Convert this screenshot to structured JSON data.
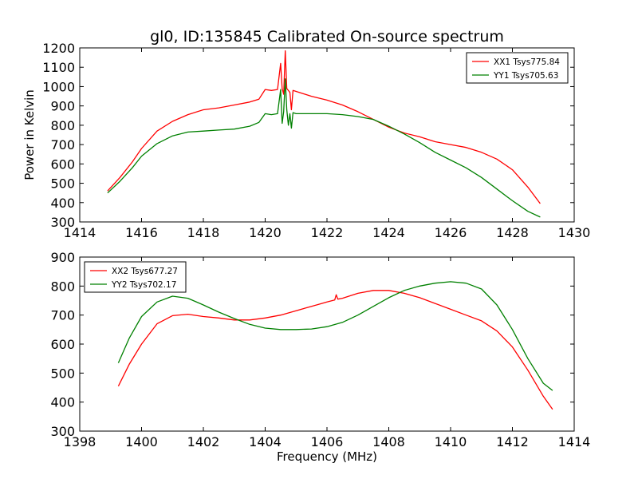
{
  "figure": {
    "title": "gl0, ID:135845 Calibrated On-source spectrum"
  },
  "chart_data": [
    {
      "type": "line",
      "title": "gl0, ID:135845 Calibrated On-source spectrum",
      "xlabel": "",
      "ylabel": "Power in Kelvin",
      "xlim": [
        1414,
        1430
      ],
      "ylim": [
        300,
        1200
      ],
      "x_ticks": [
        "1414",
        "1416",
        "1418",
        "1420",
        "1422",
        "1424",
        "1426",
        "1428",
        "1430"
      ],
      "y_ticks": [
        "300",
        "400",
        "500",
        "600",
        "700",
        "800",
        "900",
        "1000",
        "1100",
        "1200"
      ],
      "legend_position": "top-right",
      "grid": false,
      "series": [
        {
          "name": "XX1 Tsys775.84",
          "color": "#ff0000",
          "points": [
            [
              1414.9,
              460
            ],
            [
              1415.3,
              530
            ],
            [
              1415.7,
              610
            ],
            [
              1416.0,
              680
            ],
            [
              1416.5,
              770
            ],
            [
              1417.0,
              820
            ],
            [
              1417.5,
              855
            ],
            [
              1418.0,
              880
            ],
            [
              1418.5,
              890
            ],
            [
              1419.0,
              905
            ],
            [
              1419.5,
              920
            ],
            [
              1419.8,
              935
            ],
            [
              1420.0,
              985
            ],
            [
              1420.2,
              980
            ],
            [
              1420.4,
              985
            ],
            [
              1420.5,
              1120
            ],
            [
              1420.55,
              990
            ],
            [
              1420.6,
              960
            ],
            [
              1420.65,
              1185
            ],
            [
              1420.7,
              990
            ],
            [
              1420.8,
              970
            ],
            [
              1420.85,
              880
            ],
            [
              1420.9,
              980
            ],
            [
              1421.0,
              975
            ],
            [
              1421.5,
              950
            ],
            [
              1422.0,
              930
            ],
            [
              1422.5,
              905
            ],
            [
              1423.0,
              870
            ],
            [
              1423.5,
              830
            ],
            [
              1424.0,
              790
            ],
            [
              1424.5,
              760
            ],
            [
              1425.0,
              740
            ],
            [
              1425.5,
              715
            ],
            [
              1426.0,
              700
            ],
            [
              1426.5,
              685
            ],
            [
              1427.0,
              660
            ],
            [
              1427.5,
              625
            ],
            [
              1428.0,
              570
            ],
            [
              1428.5,
              480
            ],
            [
              1428.9,
              395
            ]
          ]
        },
        {
          "name": "YY1 Tsys705.63",
          "color": "#008000",
          "points": [
            [
              1414.9,
              450
            ],
            [
              1415.3,
              510
            ],
            [
              1415.7,
              580
            ],
            [
              1416.0,
              640
            ],
            [
              1416.5,
              705
            ],
            [
              1417.0,
              745
            ],
            [
              1417.5,
              765
            ],
            [
              1418.0,
              770
            ],
            [
              1418.5,
              775
            ],
            [
              1419.0,
              780
            ],
            [
              1419.5,
              795
            ],
            [
              1419.8,
              815
            ],
            [
              1420.0,
              860
            ],
            [
              1420.2,
              855
            ],
            [
              1420.4,
              860
            ],
            [
              1420.5,
              985
            ],
            [
              1420.55,
              810
            ],
            [
              1420.6,
              870
            ],
            [
              1420.65,
              1040
            ],
            [
              1420.7,
              880
            ],
            [
              1420.75,
              800
            ],
            [
              1420.8,
              860
            ],
            [
              1420.85,
              785
            ],
            [
              1420.9,
              865
            ],
            [
              1421.0,
              860
            ],
            [
              1421.5,
              860
            ],
            [
              1422.0,
              860
            ],
            [
              1422.5,
              855
            ],
            [
              1423.0,
              845
            ],
            [
              1423.5,
              830
            ],
            [
              1424.0,
              795
            ],
            [
              1424.5,
              755
            ],
            [
              1425.0,
              710
            ],
            [
              1425.5,
              660
            ],
            [
              1426.0,
              620
            ],
            [
              1426.5,
              580
            ],
            [
              1427.0,
              530
            ],
            [
              1427.5,
              470
            ],
            [
              1428.0,
              410
            ],
            [
              1428.5,
              355
            ],
            [
              1428.9,
              325
            ]
          ]
        }
      ]
    },
    {
      "type": "line",
      "title": "",
      "xlabel": "Frequency (MHz)",
      "ylabel": "",
      "xlim": [
        1398,
        1414
      ],
      "ylim": [
        300,
        900
      ],
      "x_ticks": [
        "1398",
        "1400",
        "1402",
        "1404",
        "1406",
        "1408",
        "1410",
        "1412",
        "1414"
      ],
      "y_ticks": [
        "300",
        "400",
        "500",
        "600",
        "700",
        "800",
        "900"
      ],
      "legend_position": "top-left",
      "grid": false,
      "series": [
        {
          "name": "XX2 Tsys677.27",
          "color": "#ff0000",
          "points": [
            [
              1399.25,
              455
            ],
            [
              1399.6,
              530
            ],
            [
              1400.0,
              600
            ],
            [
              1400.5,
              670
            ],
            [
              1401.0,
              698
            ],
            [
              1401.5,
              703
            ],
            [
              1402.0,
              695
            ],
            [
              1402.5,
              690
            ],
            [
              1403.0,
              683
            ],
            [
              1403.5,
              683
            ],
            [
              1404.0,
              690
            ],
            [
              1404.5,
              700
            ],
            [
              1405.0,
              715
            ],
            [
              1405.5,
              730
            ],
            [
              1406.0,
              745
            ],
            [
              1406.25,
              752
            ],
            [
              1406.3,
              770
            ],
            [
              1406.35,
              755
            ],
            [
              1406.5,
              758
            ],
            [
              1407.0,
              775
            ],
            [
              1407.5,
              785
            ],
            [
              1408.0,
              785
            ],
            [
              1408.5,
              775
            ],
            [
              1409.0,
              760
            ],
            [
              1409.5,
              740
            ],
            [
              1410.0,
              720
            ],
            [
              1410.5,
              700
            ],
            [
              1411.0,
              680
            ],
            [
              1411.5,
              645
            ],
            [
              1412.0,
              590
            ],
            [
              1412.5,
              510
            ],
            [
              1413.0,
              420
            ],
            [
              1413.3,
              375
            ]
          ]
        },
        {
          "name": "YY2 Tsys702.17",
          "color": "#008000",
          "points": [
            [
              1399.25,
              535
            ],
            [
              1399.6,
              620
            ],
            [
              1400.0,
              695
            ],
            [
              1400.5,
              745
            ],
            [
              1401.0,
              765
            ],
            [
              1401.5,
              758
            ],
            [
              1402.0,
              735
            ],
            [
              1402.5,
              710
            ],
            [
              1403.0,
              688
            ],
            [
              1403.5,
              668
            ],
            [
              1404.0,
              655
            ],
            [
              1404.5,
              650
            ],
            [
              1405.0,
              650
            ],
            [
              1405.5,
              652
            ],
            [
              1406.0,
              660
            ],
            [
              1406.5,
              675
            ],
            [
              1407.0,
              700
            ],
            [
              1407.5,
              730
            ],
            [
              1408.0,
              760
            ],
            [
              1408.5,
              785
            ],
            [
              1409.0,
              800
            ],
            [
              1409.5,
              810
            ],
            [
              1410.0,
              815
            ],
            [
              1410.5,
              810
            ],
            [
              1411.0,
              790
            ],
            [
              1411.5,
              735
            ],
            [
              1412.0,
              650
            ],
            [
              1412.5,
              550
            ],
            [
              1413.0,
              465
            ],
            [
              1413.3,
              440
            ]
          ]
        }
      ]
    }
  ]
}
